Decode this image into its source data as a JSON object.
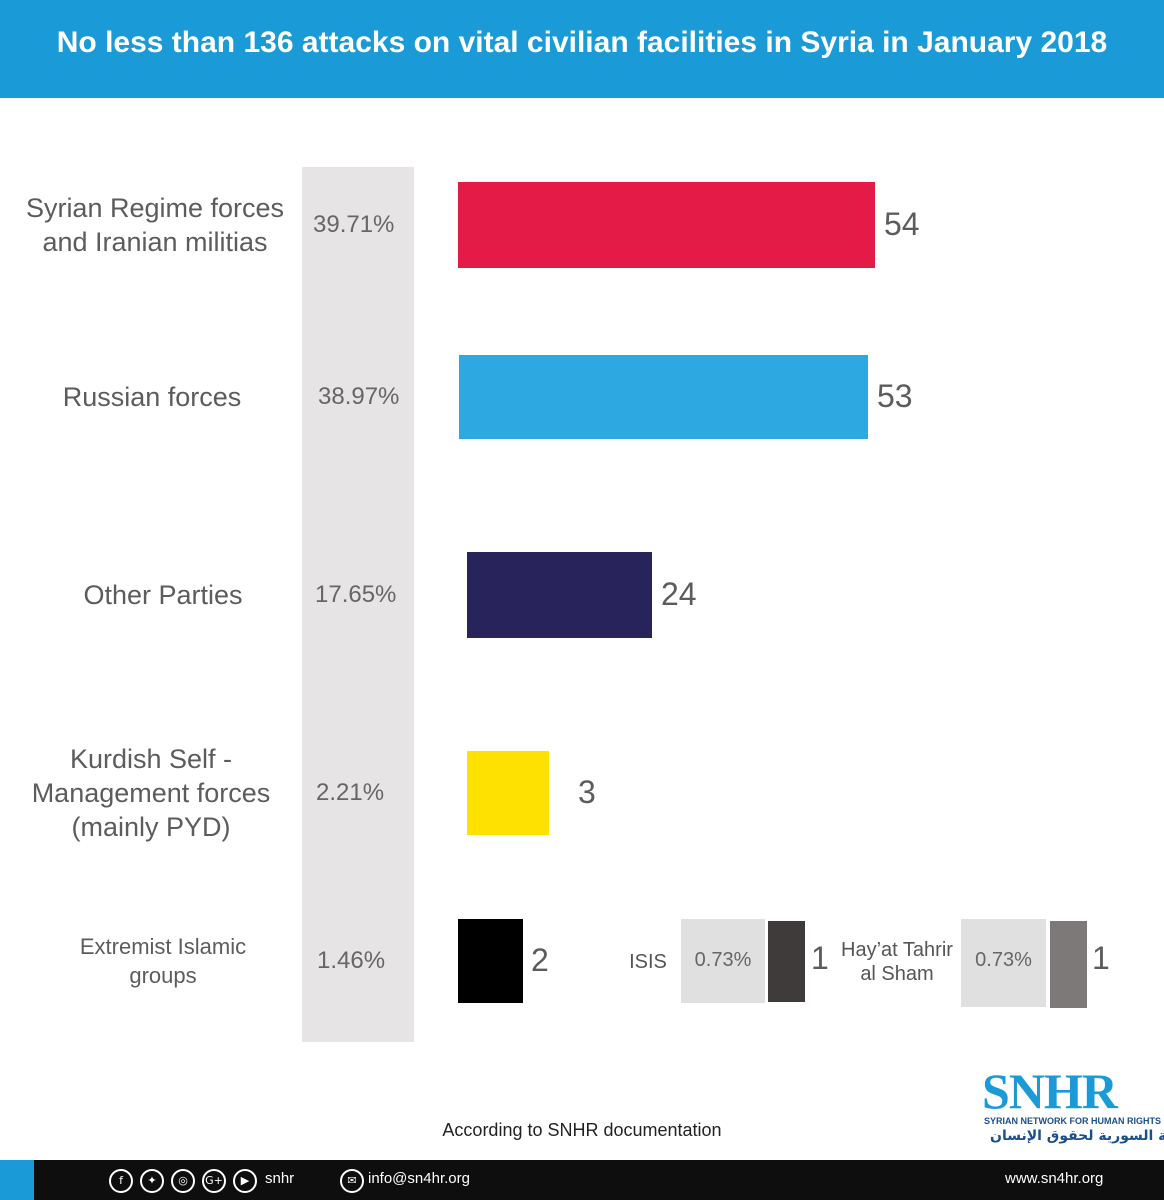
{
  "header": {
    "title": "No less than 136 attacks on vital civilian facilities in Syria in January 2018"
  },
  "chart_data": {
    "type": "bar",
    "orientation": "horizontal",
    "title": "No less than 136 attacks on vital civilian facilities in Syria in January 2018",
    "categories": [
      [
        "Syrian Regime forces",
        "and Iranian militias"
      ],
      [
        "Russian forces"
      ],
      [
        "Other Parties"
      ],
      [
        "Kurdish Self -",
        "Management forces",
        "(mainly PYD)"
      ],
      [
        "Extremist Islamic",
        "groups"
      ]
    ],
    "values": [
      54,
      53,
      24,
      3,
      2
    ],
    "value_labels": [
      "54",
      "53",
      "24",
      "3",
      "2"
    ],
    "percentages": [
      "39.71%",
      "38.97%",
      "17.65%",
      "2.21%",
      "1.46%"
    ],
    "colors": [
      "#e31b46",
      "#2ea8e0",
      "#29235c",
      "#ffe100",
      "#000000"
    ],
    "breakdown": [
      {
        "label": [
          "ISIS"
        ],
        "percentage": "0.73%",
        "value": 1,
        "value_label": "1",
        "color": "#3f3b3a"
      },
      {
        "label": [
          "Hay’at Tahrir",
          "al Sham"
        ],
        "percentage": "0.73%",
        "value": 1,
        "value_label": "1",
        "color": "#7d7979"
      }
    ]
  },
  "footer": {
    "note": "According to SNHR documentation",
    "social_icons": [
      "facebook-icon",
      "twitter-icon",
      "instagram-icon",
      "google-plus-icon",
      "youtube-icon"
    ],
    "social_glyphs": [
      "f",
      "✦",
      "◎",
      "G+",
      "▶"
    ],
    "social_handle": "snhr",
    "email_icon": "✉",
    "email": "info@sn4hr.org",
    "website": "www.sn4hr.org"
  },
  "logo": {
    "name": "SNHR",
    "subtitle": "SYRIAN NETWORK FOR HUMAN RIGHTS",
    "arabic": "الشبكة السورية لحقوق الإنسان"
  }
}
